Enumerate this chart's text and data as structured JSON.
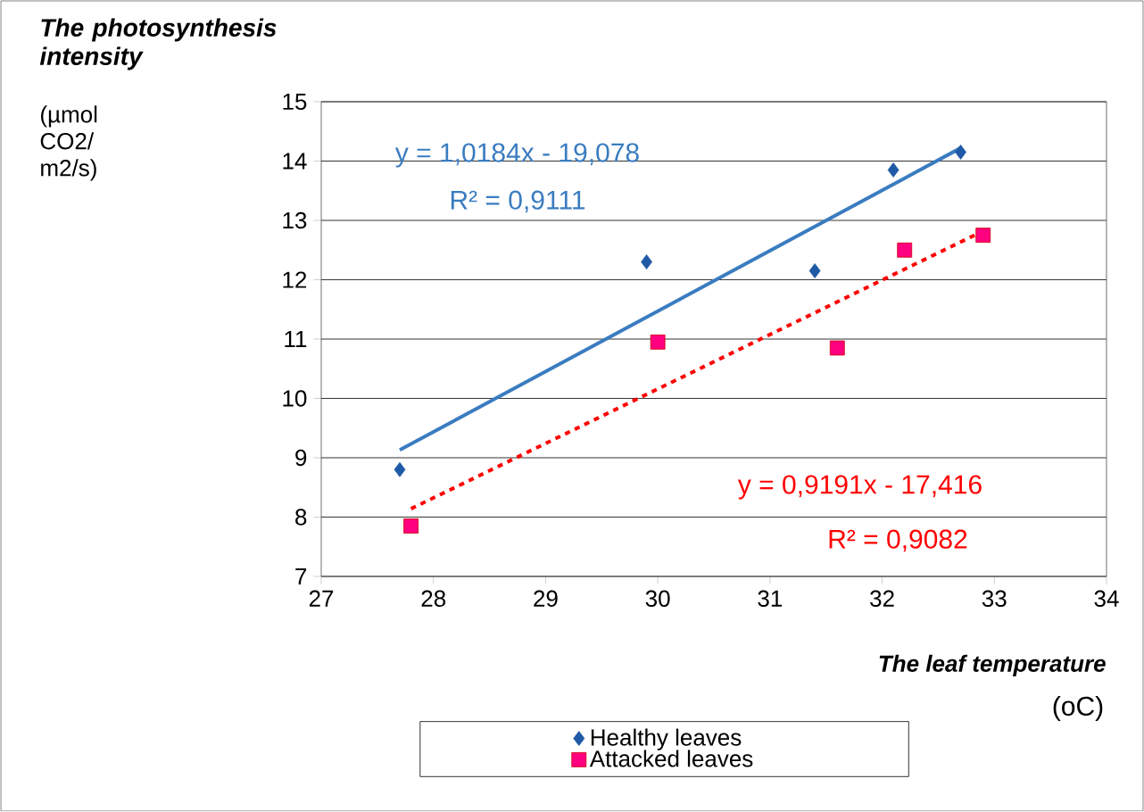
{
  "chart_data": {
    "type": "scatter",
    "title": "The photosynthesis intensity",
    "xlabel": "The leaf temperature",
    "annotations": [
      "y = 1,0184x - 19,078",
      "R² = 0,9111",
      "y = 0,9191x - 17,416",
      "R² = 0,9082",
      "(oC)",
      "(µmol CO2/ m2/s)"
    ],
    "series": [
      {
        "name": "Healthy leaves",
        "color": "#1f5aa6",
        "marker": "diamond",
        "x": [
          27.7,
          29.9,
          31.4,
          32.1,
          32.7
        ],
        "values": [
          8.8,
          12.3,
          12.15,
          13.85,
          14.15
        ]
      },
      {
        "name": "Attacked leaves",
        "color": "#ff0080",
        "marker": "square",
        "x": [
          27.8,
          30.0,
          31.6,
          32.2,
          32.9
        ],
        "values": [
          7.85,
          10.95,
          10.85,
          12.5,
          12.75
        ]
      },
      {
        "type": "line",
        "color": "#3a7cc0",
        "line_style": "solid",
        "marker": "none",
        "x": [
          27.7,
          32.7
        ],
        "values": [
          9.13,
          14.22
        ]
      },
      {
        "type": "line",
        "color": "#ff0000",
        "line_style": "dashed",
        "marker": "none",
        "x": [
          27.8,
          32.9
        ],
        "values": [
          8.14,
          12.82
        ]
      }
    ],
    "xlim": [
      27,
      34
    ],
    "xticks": [
      27,
      28,
      29,
      30,
      31,
      32,
      33,
      34
    ],
    "ylim": [
      7,
      15
    ],
    "yticks": [
      7,
      8,
      9,
      10,
      11,
      12,
      13,
      14,
      15
    ],
    "grid": "y",
    "legend": "bottom"
  }
}
